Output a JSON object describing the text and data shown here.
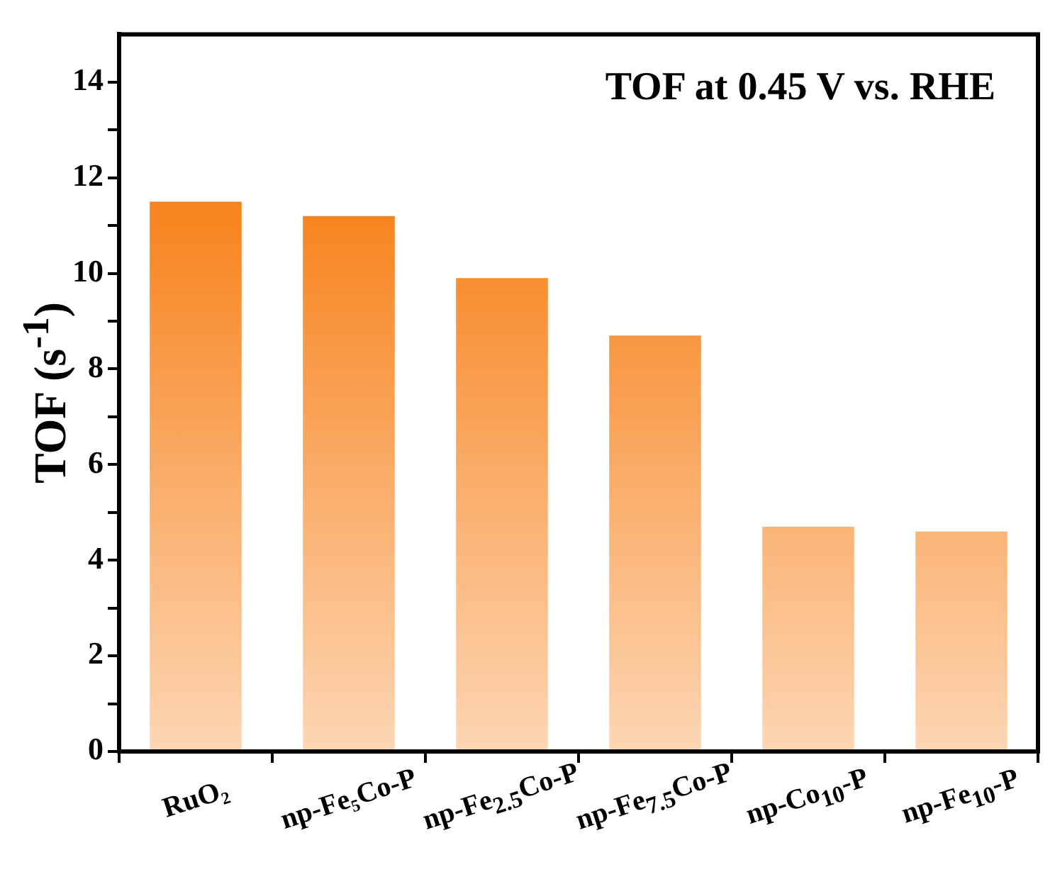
{
  "chart_data": {
    "type": "bar",
    "title": "TOF at 0.45 V vs. RHE",
    "ylabel": "TOF (s$^{-1}$)",
    "categories": [
      "RuO₂",
      "np-Fe₅Co-P",
      "np-Fe$_{2.5}$Co-P",
      "np-Fe$_{7.5}$Co-P",
      "np-Co$_{10}$-P",
      "np-Fe$_{10}$-P"
    ],
    "values": [
      11.5,
      11.2,
      9.9,
      8.7,
      4.7,
      4.6
    ],
    "color": "#f7841f",
    "ylim": [
      0,
      15
    ],
    "yticks": [
      0,
      {
        "value": 1,
        "label": null
      },
      2,
      {
        "value": 3,
        "label": null
      },
      4,
      {
        "value": 5,
        "label": null
      },
      6,
      {
        "value": 7,
        "label": null
      },
      8,
      {
        "value": 9,
        "label": null
      },
      10,
      {
        "value": 11,
        "label": null
      },
      12,
      {
        "value": 13,
        "label": null
      },
      14
    ],
    "grid": false
  }
}
